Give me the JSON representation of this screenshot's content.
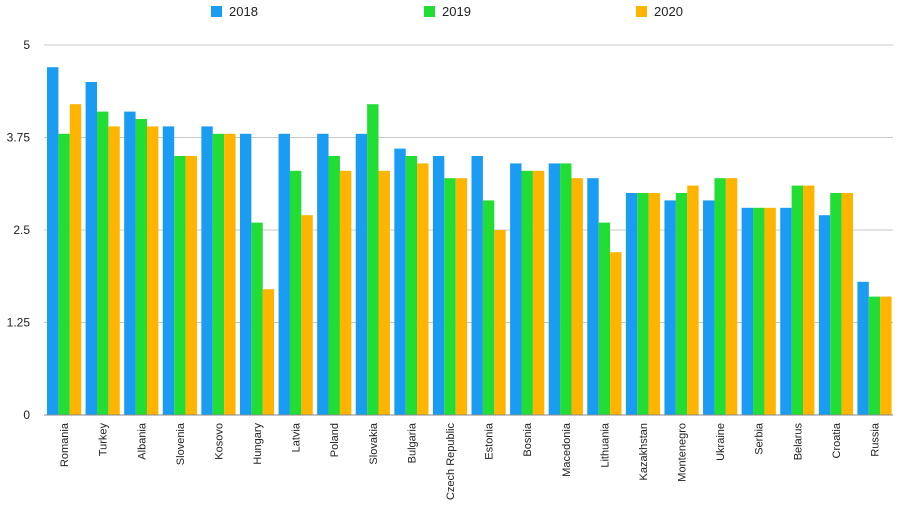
{
  "chart_data": {
    "type": "bar",
    "title": "",
    "xlabel": "",
    "ylabel": "",
    "ylim": [
      0,
      5
    ],
    "yticks": [
      "0",
      "1.25",
      "2.5",
      "3.75",
      "5"
    ],
    "grid": true,
    "legend_position": "top",
    "categories": [
      "Romania",
      "Turkey",
      "Albania",
      "Slovenia",
      "Kosovo",
      "Hungary",
      "Latvia",
      "Poland",
      "Slovakia",
      "Bulgaria",
      "Czech Republic",
      "Estonia",
      "Bosnia",
      "Macedonia",
      "Lithuania",
      "Kazakhstan",
      "Montenegro",
      "Ukraine",
      "Serbia",
      "Belarus",
      "Croatia",
      "Russia"
    ],
    "series": [
      {
        "name": "2018",
        "color": "#1a9cf2",
        "values": [
          4.7,
          4.5,
          4.1,
          3.9,
          3.9,
          3.8,
          3.8,
          3.8,
          3.8,
          3.6,
          3.5,
          3.5,
          3.4,
          3.4,
          3.2,
          3.0,
          2.9,
          2.9,
          2.8,
          2.8,
          2.7,
          1.8
        ]
      },
      {
        "name": "2019",
        "color": "#22dd33",
        "values": [
          3.8,
          4.1,
          4.0,
          3.5,
          3.8,
          2.6,
          3.3,
          3.5,
          4.2,
          3.5,
          3.2,
          2.9,
          3.3,
          3.4,
          2.6,
          3.0,
          3.0,
          3.2,
          2.8,
          3.1,
          3.0,
          1.6
        ]
      },
      {
        "name": "2020",
        "color": "#ffb400",
        "values": [
          4.2,
          3.9,
          3.9,
          3.5,
          3.8,
          1.7,
          2.7,
          3.3,
          3.3,
          3.4,
          3.2,
          2.5,
          3.3,
          3.2,
          2.2,
          3.0,
          3.1,
          3.2,
          2.8,
          3.1,
          3.0,
          1.6
        ]
      }
    ]
  }
}
